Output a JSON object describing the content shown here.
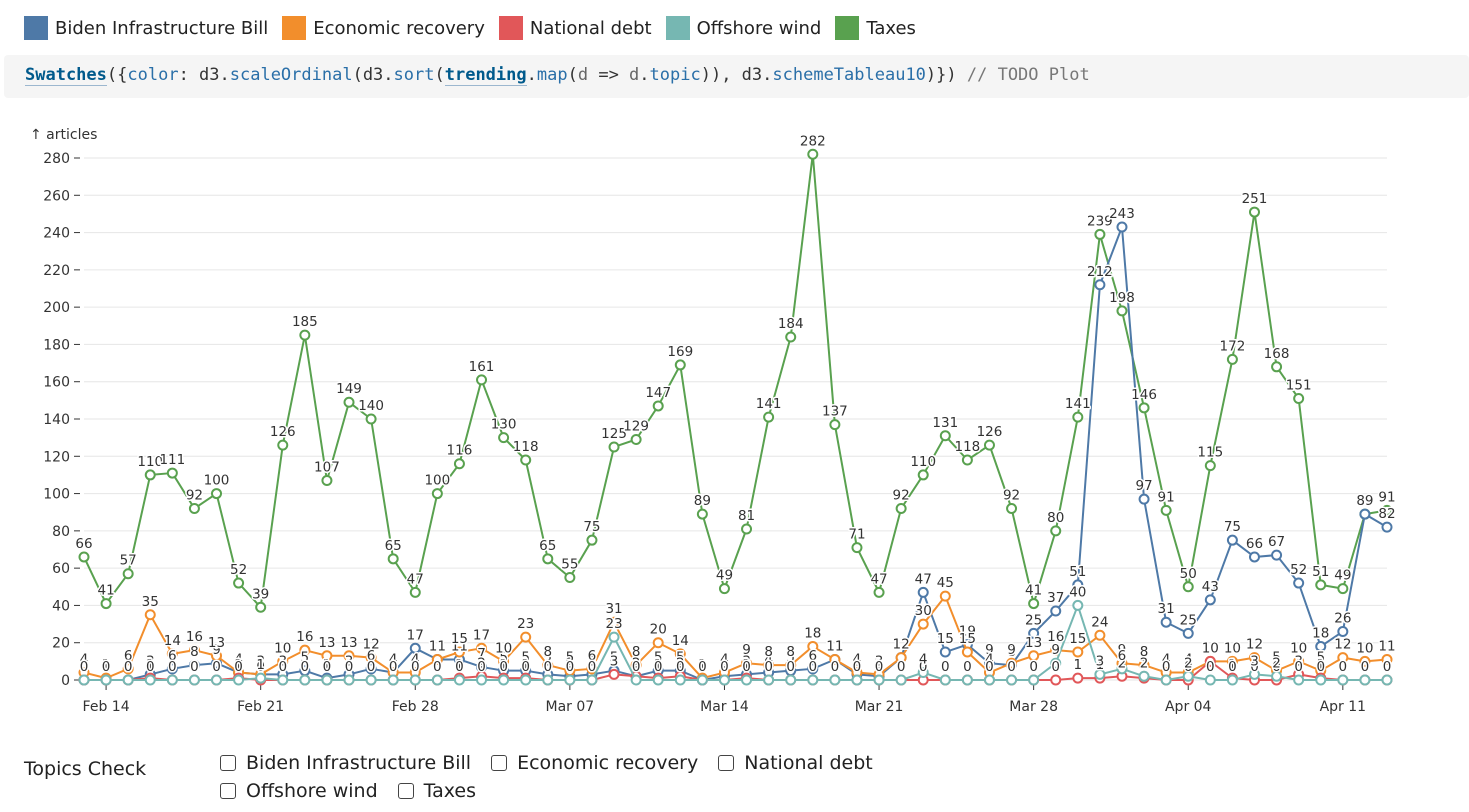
{
  "legend": [
    {
      "label": "Biden Infrastructure Bill",
      "color": "#4e79a7"
    },
    {
      "label": "Economic recovery",
      "color": "#f28e2c"
    },
    {
      "label": "National debt",
      "color": "#e15759"
    },
    {
      "label": "Offshore wind",
      "color": "#76b7b2"
    },
    {
      "label": "Taxes",
      "color": "#59a14f"
    }
  ],
  "code": {
    "fn": "Swatches",
    "p1": "({",
    "k_color": "color",
    "p2": ": d3.",
    "m_scale": "scaleOrdinal",
    "p3": "(d3.",
    "m_sort": "sort",
    "p4": "(",
    "v_trending": "trending",
    "p5": ".",
    "m_map": "map",
    "p6": "(",
    "v_d": "d",
    "p7": " => ",
    "v_d2": "d",
    "p8": ".",
    "m_topic": "topic",
    "p9": ")), d3.",
    "m_scheme": "schemeTableau10",
    "p10": ")}) ",
    "comment": "// TODO Plot"
  },
  "checks": {
    "title": "Topics Check",
    "options": [
      "Biden Infrastructure Bill",
      "Economic recovery",
      "National debt",
      "Offshore wind",
      "Taxes"
    ]
  },
  "chart_data": {
    "type": "line",
    "ylabel": "↑ articles",
    "ylim": [
      0,
      280
    ],
    "yticks": [
      0,
      20,
      40,
      60,
      80,
      100,
      120,
      140,
      160,
      180,
      200,
      220,
      240,
      260,
      280
    ],
    "x_start": "Feb 13",
    "x_end": "Apr 12",
    "xticks": [
      "Feb 14",
      "Feb 21",
      "Feb 28",
      "Mar 07",
      "Mar 14",
      "Mar 21",
      "Mar 28",
      "Apr 04",
      "Apr 11"
    ],
    "grid": true,
    "series": [
      {
        "name": "Taxes",
        "color": "#59a14f",
        "values": [
          66,
          41,
          57,
          110,
          111,
          92,
          100,
          52,
          39,
          126,
          185,
          107,
          149,
          140,
          65,
          47,
          100,
          116,
          161,
          130,
          118,
          65,
          55,
          75,
          125,
          129,
          147,
          169,
          89,
          49,
          81,
          141,
          184,
          282,
          137,
          71,
          47,
          92,
          110,
          131,
          118,
          126,
          92,
          41,
          80,
          141,
          239,
          198,
          146,
          91,
          50,
          115,
          172,
          251,
          168,
          151,
          51,
          49,
          89,
          91
        ]
      },
      {
        "name": "Biden Infrastructure Bill",
        "color": "#4e79a7",
        "values": [
          0,
          0,
          0,
          3,
          6,
          8,
          9,
          4,
          3,
          3,
          5,
          1,
          3,
          6,
          4,
          17,
          11,
          11,
          7,
          5,
          5,
          3,
          2,
          3,
          5,
          2,
          5,
          5,
          0,
          2,
          3,
          4,
          5,
          6,
          11,
          3,
          2,
          12,
          47,
          15,
          19,
          9,
          8,
          25,
          37,
          51,
          212,
          243,
          97,
          31,
          25,
          43,
          75,
          66,
          67,
          52,
          18,
          26,
          89,
          82
        ]
      },
      {
        "name": "Economic recovery",
        "color": "#f28e2c",
        "values": [
          4,
          1,
          6,
          35,
          14,
          16,
          13,
          4,
          3,
          10,
          16,
          13,
          13,
          12,
          4,
          4,
          11,
          15,
          17,
          10,
          23,
          8,
          5,
          6,
          31,
          8,
          20,
          14,
          1,
          4,
          9,
          8,
          8,
          18,
          11,
          4,
          3,
          12,
          30,
          45,
          15,
          4,
          9,
          13,
          16,
          15,
          24,
          9,
          8,
          4,
          4,
          10,
          10,
          12,
          5,
          10,
          5,
          12,
          10,
          11
        ]
      },
      {
        "name": "National debt",
        "color": "#e15759",
        "values": [
          0,
          0,
          0,
          1,
          0,
          0,
          0,
          1,
          0,
          0,
          0,
          0,
          0,
          0,
          0,
          0,
          0,
          1,
          2,
          1,
          1,
          0,
          0,
          0,
          3,
          2,
          1,
          2,
          0,
          0,
          1,
          0,
          0,
          0,
          0,
          0,
          0,
          0,
          0,
          0,
          0,
          0,
          0,
          0,
          0,
          1,
          1,
          2,
          1,
          0,
          0,
          10,
          1,
          0,
          0,
          3,
          1,
          0,
          0,
          0
        ]
      },
      {
        "name": "Offshore wind",
        "color": "#76b7b2",
        "values": [
          0,
          0,
          0,
          0,
          0,
          0,
          0,
          0,
          1,
          0,
          0,
          0,
          0,
          0,
          0,
          0,
          0,
          0,
          0,
          0,
          0,
          0,
          0,
          0,
          23,
          0,
          0,
          0,
          0,
          0,
          0,
          0,
          0,
          0,
          0,
          0,
          0,
          0,
          4,
          0,
          0,
          0,
          0,
          0,
          9,
          40,
          3,
          6,
          2,
          0,
          2,
          0,
          0,
          3,
          2,
          0,
          0,
          0,
          0,
          0
        ]
      }
    ]
  }
}
